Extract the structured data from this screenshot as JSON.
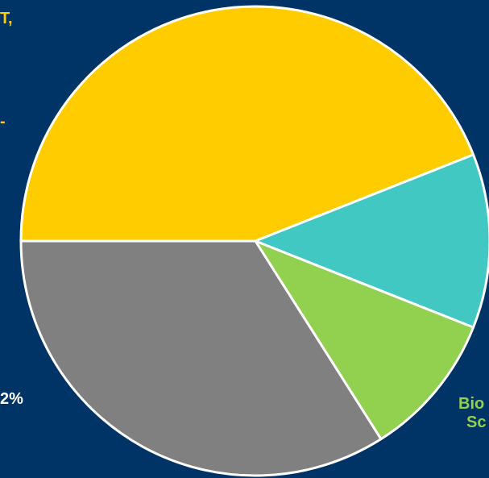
{
  "chart_data": {
    "type": "pie",
    "slices": [
      {
        "value": 44,
        "color": "#ffcc00"
      },
      {
        "value": 12,
        "color": "#42c8c2"
      },
      {
        "value": 10,
        "color": "#92d050"
      },
      {
        "value": 34,
        "color": "#808080"
      }
    ],
    "label_fragments": [
      {
        "text": "T,",
        "color": "#ffcc00"
      },
      {
        "text": "-",
        "color": "#ffcc00"
      },
      {
        "text": "2%",
        "color": "#ffffff"
      },
      {
        "text": "Bio",
        "color": "#92d050"
      },
      {
        "text": "Sc",
        "color": "#92d050"
      }
    ],
    "background": "#003366",
    "outline_color": "#ffffff"
  }
}
